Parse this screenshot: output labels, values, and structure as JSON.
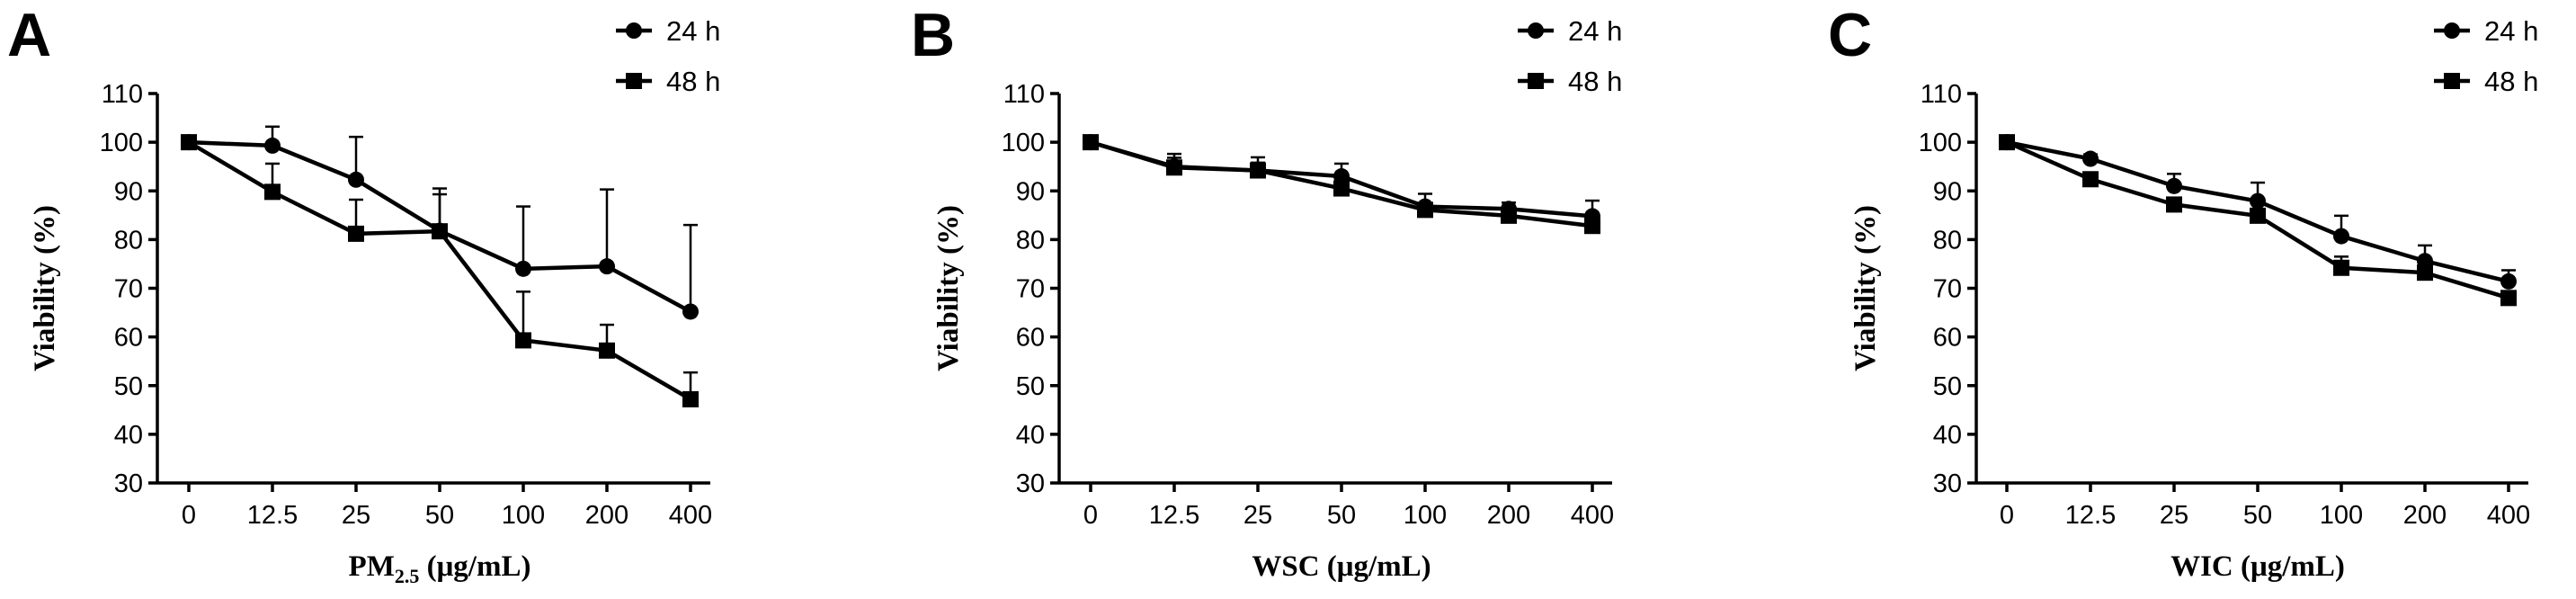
{
  "figure": {
    "legend": [
      {
        "name": "24 h",
        "marker": "circle"
      },
      {
        "name": "48 h",
        "marker": "square"
      }
    ]
  },
  "chart_data": [
    {
      "panel": "A",
      "type": "line",
      "title": "",
      "xlabel": "PM",
      "xlabel_sub": "2.5",
      "xlabel_suffix": " (μg/mL)",
      "ylabel": "Viability (%)",
      "categories": [
        "0",
        "12.5",
        "25",
        "50",
        "100",
        "200",
        "400"
      ],
      "ylim": [
        30,
        110
      ],
      "yticks": [
        30,
        40,
        50,
        60,
        70,
        80,
        90,
        100,
        110
      ],
      "legend_position": "top-right",
      "series": [
        {
          "name": "24 h",
          "marker": "circle",
          "values": [
            100,
            99.3,
            92.3,
            81.8,
            74,
            74.5,
            65.2
          ],
          "errors": [
            0,
            3.9,
            8.8,
            7.5,
            12.8,
            15.8,
            17.8
          ]
        },
        {
          "name": "48 h",
          "marker": "square",
          "values": [
            100,
            89.8,
            81.2,
            81.7,
            59.3,
            57.2,
            47.2
          ],
          "errors": [
            0,
            5.8,
            7,
            8.8,
            10,
            5.3,
            5.5
          ]
        }
      ]
    },
    {
      "panel": "B",
      "type": "line",
      "title": "",
      "xlabel": "WSC",
      "xlabel_sub": "",
      "xlabel_suffix": " (μg/mL)",
      "ylabel": "Viability (%)",
      "categories": [
        "0",
        "12.5",
        "25",
        "50",
        "100",
        "200",
        "400"
      ],
      "ylim": [
        30,
        110
      ],
      "yticks": [
        30,
        40,
        50,
        60,
        70,
        80,
        90,
        100,
        110
      ],
      "legend_position": "top-right",
      "series": [
        {
          "name": "24 h",
          "marker": "circle",
          "values": [
            100,
            95,
            94.2,
            93,
            86.8,
            86.3,
            84.8
          ],
          "errors": [
            0,
            2.6,
            2.7,
            2.6,
            2.6,
            1.3,
            3.2
          ]
        },
        {
          "name": "48 h",
          "marker": "square",
          "values": [
            100,
            94.8,
            94.2,
            90.5,
            86.1,
            84.9,
            82.8
          ],
          "errors": [
            0,
            2,
            1.6,
            1.7,
            1.4,
            1.2,
            1.4
          ]
        }
      ]
    },
    {
      "panel": "C",
      "type": "line",
      "title": "",
      "xlabel": "WIC",
      "xlabel_sub": "",
      "xlabel_suffix": " (μg/mL)",
      "ylabel": "Viability (%)",
      "categories": [
        "0",
        "12.5",
        "25",
        "50",
        "100",
        "200",
        "400"
      ],
      "ylim": [
        30,
        110
      ],
      "yticks": [
        30,
        40,
        50,
        60,
        70,
        80,
        90,
        100,
        110
      ],
      "legend_position": "top-right",
      "series": [
        {
          "name": "24 h",
          "marker": "circle",
          "values": [
            100,
            96.6,
            91,
            87.9,
            80.7,
            75.6,
            71.4
          ],
          "errors": [
            0,
            0.9,
            2.5,
            3.8,
            4.2,
            3.2,
            2.3
          ]
        },
        {
          "name": "48 h",
          "marker": "square",
          "values": [
            100,
            92.4,
            87.2,
            84.9,
            74.2,
            73.2,
            68
          ],
          "errors": [
            0,
            1.2,
            1.1,
            1.1,
            2.3,
            1.4,
            1.2
          ]
        }
      ]
    }
  ]
}
